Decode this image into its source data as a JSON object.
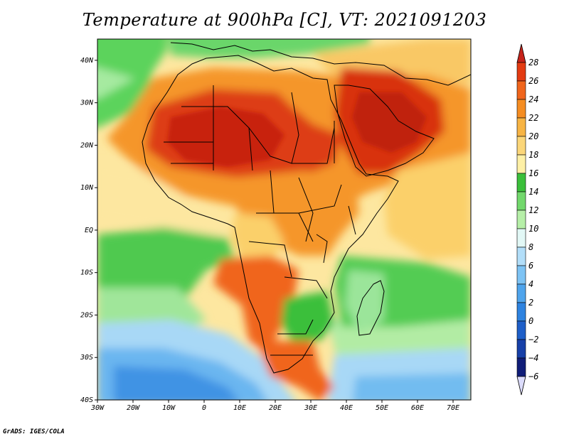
{
  "title": "Temperature at 900hPa [C], VT: 2021091203",
  "credit": "GrADS: IGES/COLA",
  "map": {
    "projection": "latlon",
    "lon_range": [
      -30,
      75
    ],
    "lat_range": [
      -40,
      45
    ],
    "lon_tick_labels": [
      {
        "lon": -30,
        "label": "30W"
      },
      {
        "lon": -20,
        "label": "20W"
      },
      {
        "lon": -10,
        "label": "10W"
      },
      {
        "lon": 0,
        "label": "0"
      },
      {
        "lon": 10,
        "label": "10E"
      },
      {
        "lon": 20,
        "label": "20E"
      },
      {
        "lon": 30,
        "label": "30E"
      },
      {
        "lon": 40,
        "label": "40E"
      },
      {
        "lon": 50,
        "label": "50E"
      },
      {
        "lon": 60,
        "label": "60E"
      },
      {
        "lon": 70,
        "label": "70E"
      }
    ],
    "lat_tick_labels": [
      {
        "lat": 40,
        "label": "40N"
      },
      {
        "lat": 30,
        "label": "30N"
      },
      {
        "lat": 20,
        "label": "20N"
      },
      {
        "lat": 10,
        "label": "10N"
      },
      {
        "lat": 0,
        "label": "EQ"
      },
      {
        "lat": -10,
        "label": "10S"
      },
      {
        "lat": -20,
        "label": "20S"
      },
      {
        "lat": -30,
        "label": "30S"
      },
      {
        "lat": -40,
        "label": "40S"
      }
    ],
    "colorbar": {
      "levels": [
        {
          "label": "28",
          "color": "#a50f15"
        },
        {
          "label": "26",
          "color": "#e33b12"
        },
        {
          "label": "24",
          "color": "#f0651c"
        },
        {
          "label": "22",
          "color": "#f58d22"
        },
        {
          "label": "20",
          "color": "#f7b444"
        },
        {
          "label": "18",
          "color": "#fbd679"
        },
        {
          "label": "16",
          "color": "#fef0a6"
        },
        {
          "label": "14",
          "color": "#3bbf3b"
        },
        {
          "label": "12",
          "color": "#72d86c"
        },
        {
          "label": "10",
          "color": "#b6efa8"
        },
        {
          "label": "8",
          "color": "#e2f8f6"
        },
        {
          "label": "6",
          "color": "#b2def9"
        },
        {
          "label": "4",
          "color": "#7dc3f4"
        },
        {
          "label": "2",
          "color": "#4fa4ec"
        },
        {
          "label": "0",
          "color": "#2e83e0"
        },
        {
          "label": "−2",
          "color": "#1e5fc8"
        },
        {
          "label": "−4",
          "color": "#1740a8"
        },
        {
          "label": "−6",
          "color": "#101d78"
        }
      ],
      "over_color": "#c6231a",
      "under_color": "#dcdcfc"
    }
  }
}
